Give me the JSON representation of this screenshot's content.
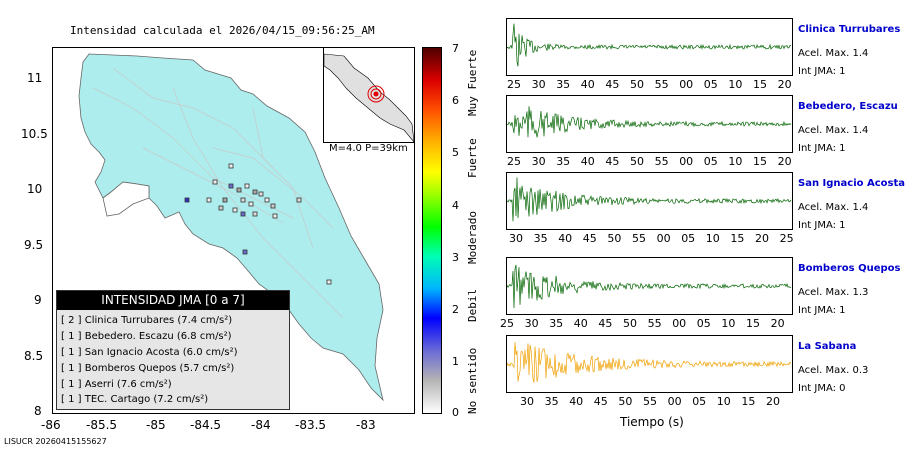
{
  "title": "Intensidad calculada el 2026/04/15_09:56:25_AM",
  "footer": "LISUCR 20260415155627",
  "map": {
    "y_ticks": [
      "11",
      "10.5",
      "10",
      "9.5",
      "9",
      "8.5",
      "8"
    ],
    "x_ticks": [
      "-86",
      "-85.5",
      "-85",
      "-84.5",
      "-84",
      "-83.5",
      "-83"
    ],
    "land_color": "#aeeded",
    "magnitude_text": "M=4.0 P=39km"
  },
  "legend": {
    "header": "INTENSIDAD JMA [0 a 7]",
    "items": [
      {
        "level": "[ 2 ]",
        "text": "Clinica Turrubares (7.4 cm/s²)"
      },
      {
        "level": "[ 1 ]",
        "text": "Bebedero. Escazu (6.8 cm/s²)"
      },
      {
        "level": "[ 1 ]",
        "text": "San Ignacio Acosta (6.0 cm/s²)"
      },
      {
        "level": "[ 1 ]",
        "text": "Bomberos Quepos (5.7 cm/s²)"
      },
      {
        "level": "[ 1 ]",
        "text": "Aserri (7.6 cm/s²)"
      },
      {
        "level": "[ 1 ]",
        "text": "TEC. Cartago (7.2 cm/s²)"
      }
    ]
  },
  "colorbar": {
    "ticks": [
      "7",
      "6",
      "5",
      "4",
      "3",
      "2",
      "1",
      "0"
    ],
    "labels": [
      "Muy Fuerte",
      "Fuerte",
      "Moderado",
      "Debil",
      "No sentido"
    ]
  },
  "stations": [
    {
      "name": "Clinica Turrubares",
      "acel": "Acel. Max. 1.4",
      "int": "Int JMA: 1",
      "color": "#006400",
      "ticks": [
        "25",
        "30",
        "35",
        "40",
        "45",
        "50",
        "55",
        "00",
        "05",
        "10",
        "15",
        "20"
      ]
    },
    {
      "name": "Bebedero, Escazu",
      "acel": "Acel. Max. 1.4",
      "int": "Int JMA: 1",
      "color": "#006400",
      "ticks": [
        "25",
        "30",
        "35",
        "40",
        "45",
        "50",
        "55",
        "00",
        "05",
        "10",
        "15",
        "20"
      ]
    },
    {
      "name": "San Ignacio Acosta",
      "acel": "Acel. Max. 1.4",
      "int": "Int JMA: 1",
      "color": "#006400",
      "ticks": [
        "30",
        "35",
        "40",
        "45",
        "50",
        "55",
        "00",
        "05",
        "10",
        "15",
        "20",
        "25"
      ]
    },
    {
      "name": "Bomberos Quepos",
      "acel": "Acel. Max. 1.3",
      "int": "Int JMA: 1",
      "color": "#006400",
      "ticks": [
        "25",
        "30",
        "35",
        "40",
        "45",
        "50",
        "55",
        "00",
        "05",
        "10",
        "15",
        "20"
      ]
    },
    {
      "name": "La Sabana",
      "acel": "Acel. Max. 0.3",
      "int": "Int JMA: 0",
      "color": "#f0a000",
      "ticks": [
        "30",
        "35",
        "40",
        "45",
        "50",
        "55",
        "00",
        "05",
        "10",
        "15",
        "20"
      ]
    }
  ],
  "xlabel": "Tiempo (s)"
}
